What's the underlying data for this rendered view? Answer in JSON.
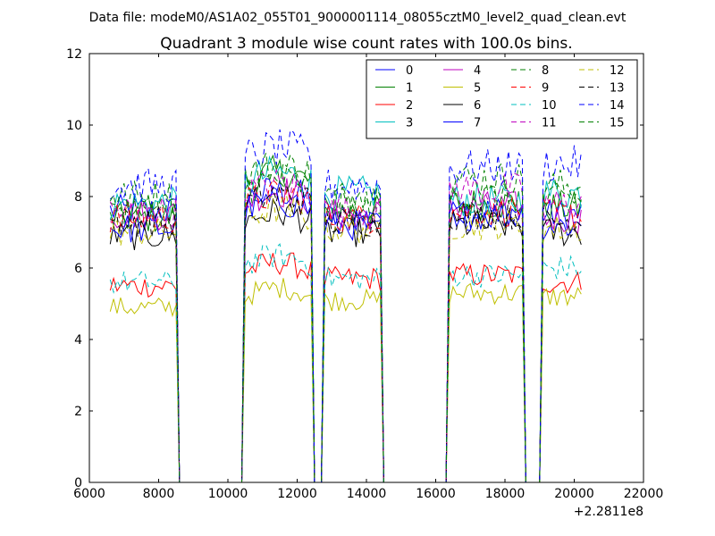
{
  "page": {
    "supertitle": "Data file: modeM0/AS1A02_055T01_9000001114_08055cztM0_level2_quad_clean.evt"
  },
  "chart_data": {
    "type": "line",
    "title": "Quadrant 3 module wise count rates with 100.0s bins.",
    "xlabel": "",
    "ylabel": "",
    "x_offset_label": "+2.2811e8",
    "xlim": [
      6000,
      22000
    ],
    "ylim": [
      0,
      12
    ],
    "xticks": [
      6000,
      8000,
      10000,
      12000,
      14000,
      16000,
      18000,
      20000,
      22000
    ],
    "yticks": [
      0,
      2,
      4,
      6,
      8,
      10,
      12
    ],
    "grid": false,
    "legend_placement": "top-right",
    "legend_columns": 4,
    "gti_segments": [
      [
        6600,
        8500
      ],
      [
        10500,
        12400
      ],
      [
        12800,
        14400
      ],
      [
        16400,
        18500
      ],
      [
        19100,
        20200
      ]
    ],
    "series": [
      {
        "name": "0",
        "color": "#0000ff",
        "dash": "solid",
        "seg_levels": [
          7.6,
          7.9,
          7.4,
          7.6,
          7.5
        ]
      },
      {
        "name": "1",
        "color": "#008000",
        "dash": "solid",
        "seg_levels": [
          7.4,
          8.4,
          7.6,
          7.8,
          7.7
        ]
      },
      {
        "name": "2",
        "color": "#ff0000",
        "dash": "solid",
        "seg_levels": [
          5.5,
          5.9,
          5.7,
          5.8,
          5.6
        ]
      },
      {
        "name": "3",
        "color": "#00bfbf",
        "dash": "solid",
        "seg_levels": [
          7.8,
          8.4,
          8.1,
          7.9,
          8.1
        ]
      },
      {
        "name": "4",
        "color": "#bf00bf",
        "dash": "solid",
        "seg_levels": [
          7.5,
          7.9,
          7.5,
          7.7,
          7.4
        ]
      },
      {
        "name": "5",
        "color": "#bfbf00",
        "dash": "solid",
        "seg_levels": [
          4.9,
          5.2,
          5.1,
          5.3,
          5.2
        ]
      },
      {
        "name": "6",
        "color": "#000000",
        "dash": "solid",
        "seg_levels": [
          6.9,
          7.3,
          7.0,
          7.2,
          7.0
        ]
      },
      {
        "name": "7",
        "color": "#0000ff",
        "dash": "solid",
        "seg_levels": [
          7.1,
          7.6,
          7.2,
          7.5,
          7.2
        ]
      },
      {
        "name": "8",
        "color": "#008000",
        "dash": "dashed",
        "seg_levels": [
          8.0,
          8.6,
          8.0,
          8.5,
          8.3
        ]
      },
      {
        "name": "9",
        "color": "#ff0000",
        "dash": "dashed",
        "seg_levels": [
          7.4,
          7.8,
          7.4,
          7.6,
          7.5
        ]
      },
      {
        "name": "10",
        "color": "#00bfbf",
        "dash": "dashed",
        "seg_levels": [
          5.6,
          6.1,
          5.7,
          5.8,
          6.0
        ]
      },
      {
        "name": "11",
        "color": "#bf00bf",
        "dash": "dashed",
        "seg_levels": [
          7.6,
          8.1,
          7.6,
          8.2,
          7.8
        ]
      },
      {
        "name": "12",
        "color": "#bfbf00",
        "dash": "dashed",
        "seg_levels": [
          7.0,
          7.4,
          7.1,
          7.2,
          7.1
        ]
      },
      {
        "name": "13",
        "color": "#000000",
        "dash": "dashed",
        "seg_levels": [
          7.3,
          7.8,
          7.3,
          7.5,
          7.3
        ]
      },
      {
        "name": "14",
        "color": "#0000ff",
        "dash": "dashed",
        "seg_levels": [
          8.3,
          9.1,
          8.3,
          8.8,
          8.9
        ]
      },
      {
        "name": "15",
        "color": "#008000",
        "dash": "dashed",
        "seg_levels": [
          7.7,
          8.2,
          7.8,
          8.0,
          7.9
        ]
      }
    ]
  }
}
